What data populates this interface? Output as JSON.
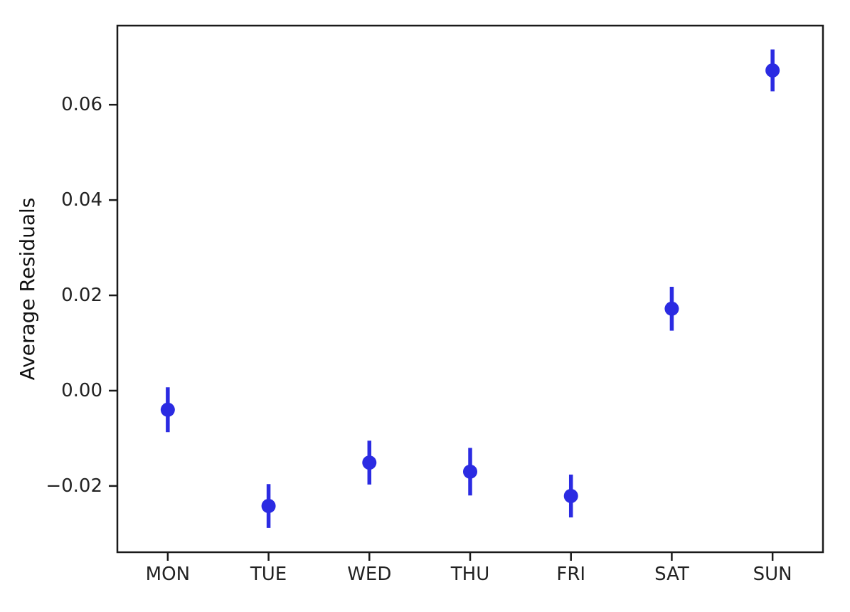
{
  "chart_data": {
    "type": "scatter",
    "subtype": "errorbar",
    "title": "",
    "xlabel": "",
    "ylabel": "Average Residuals",
    "categories": [
      "MON",
      "TUE",
      "WED",
      "THU",
      "FRI",
      "SAT",
      "SUN"
    ],
    "series": [
      {
        "name": "average-residuals",
        "values": [
          -0.004,
          -0.0242,
          -0.0151,
          -0.017,
          -0.0221,
          0.0172,
          0.0672
        ],
        "errors": [
          0.0047,
          0.0046,
          0.0046,
          0.005,
          0.0045,
          0.0046,
          0.0044
        ]
      }
    ],
    "xlim": [
      -0.5,
      6.5
    ],
    "ylim": [
      -0.0339,
      0.0766
    ],
    "yticks": [
      0.06,
      0.04,
      0.02,
      0.0,
      -0.02
    ],
    "ytick_labels": [
      "0.06",
      "0.04",
      "0.02",
      "0.00",
      "−0.02"
    ],
    "grid": false,
    "legend_position": "none",
    "colors": {
      "marker": "#2b2be2",
      "errorbar": "#2b2be2",
      "axis": "#1a1a1a",
      "tick_text": "#222222",
      "background": "#ffffff"
    },
    "marker": {
      "shape": "circle",
      "radius_px": 10
    }
  }
}
